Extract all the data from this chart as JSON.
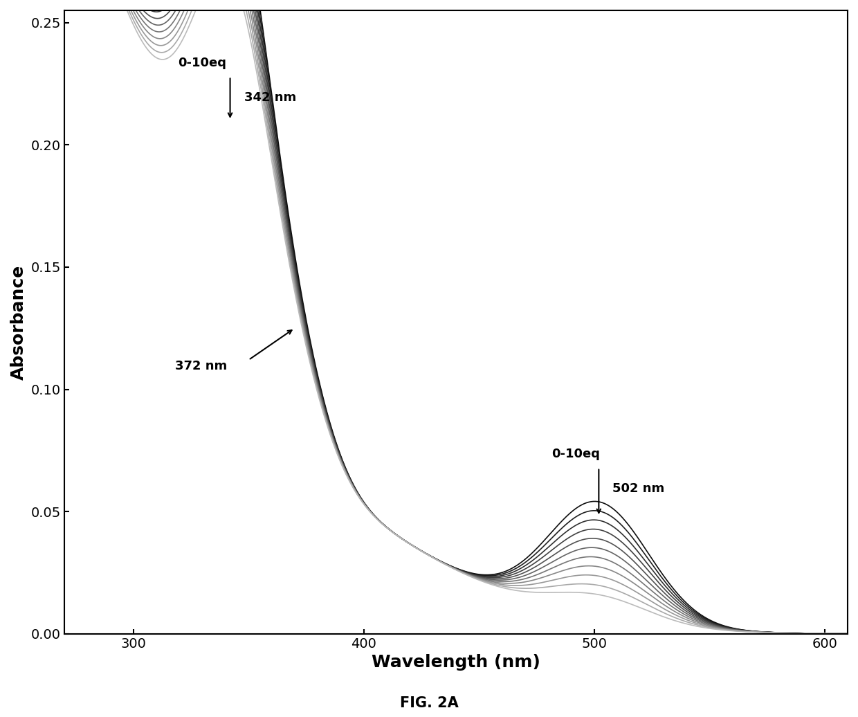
{
  "x_min": 270,
  "x_max": 610,
  "y_min": 0.0,
  "y_max": 0.255,
  "xlabel": "Wavelength (nm)",
  "ylabel": "Absorbance",
  "fig_label": "FIG. 2A",
  "xticks": [
    300,
    400,
    500,
    600
  ],
  "yticks": [
    0.0,
    0.05,
    0.1,
    0.15,
    0.2,
    0.25
  ],
  "n_curves": 11,
  "background_color": "#ffffff",
  "figsize": [
    12.4,
    10.36
  ],
  "dpi": 100,
  "ann_342_label": "0-10eq",
  "ann_342_peak": "342 nm",
  "ann_372_label": "372 nm",
  "ann_502_label": "0-10eq",
  "ann_502_peak": "502 nm"
}
